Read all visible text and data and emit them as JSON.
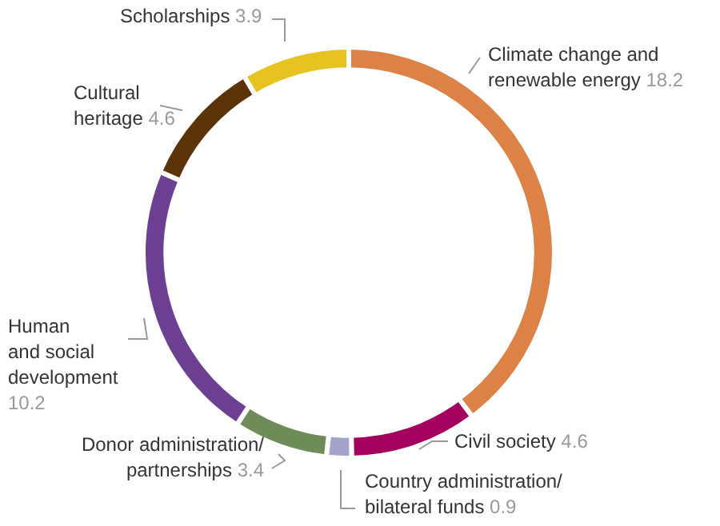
{
  "chart_data": {
    "type": "donut",
    "categories": [
      "Climate change and renewable energy",
      "Civil society",
      "Country administration/ bilateral funds",
      "Donor administration/ partnerships",
      "Human and social development",
      "Cultural heritage",
      "Scholarships"
    ],
    "values": [
      18.2,
      4.6,
      0.9,
      3.4,
      10.2,
      4.6,
      3.9
    ],
    "colors": [
      "#dc8246",
      "#a4005e",
      "#a3a3cc",
      "#6f8b58",
      "#6c3f93",
      "#5c3208",
      "#e6c31e"
    ],
    "data_labels": true,
    "legend": false
  }
}
